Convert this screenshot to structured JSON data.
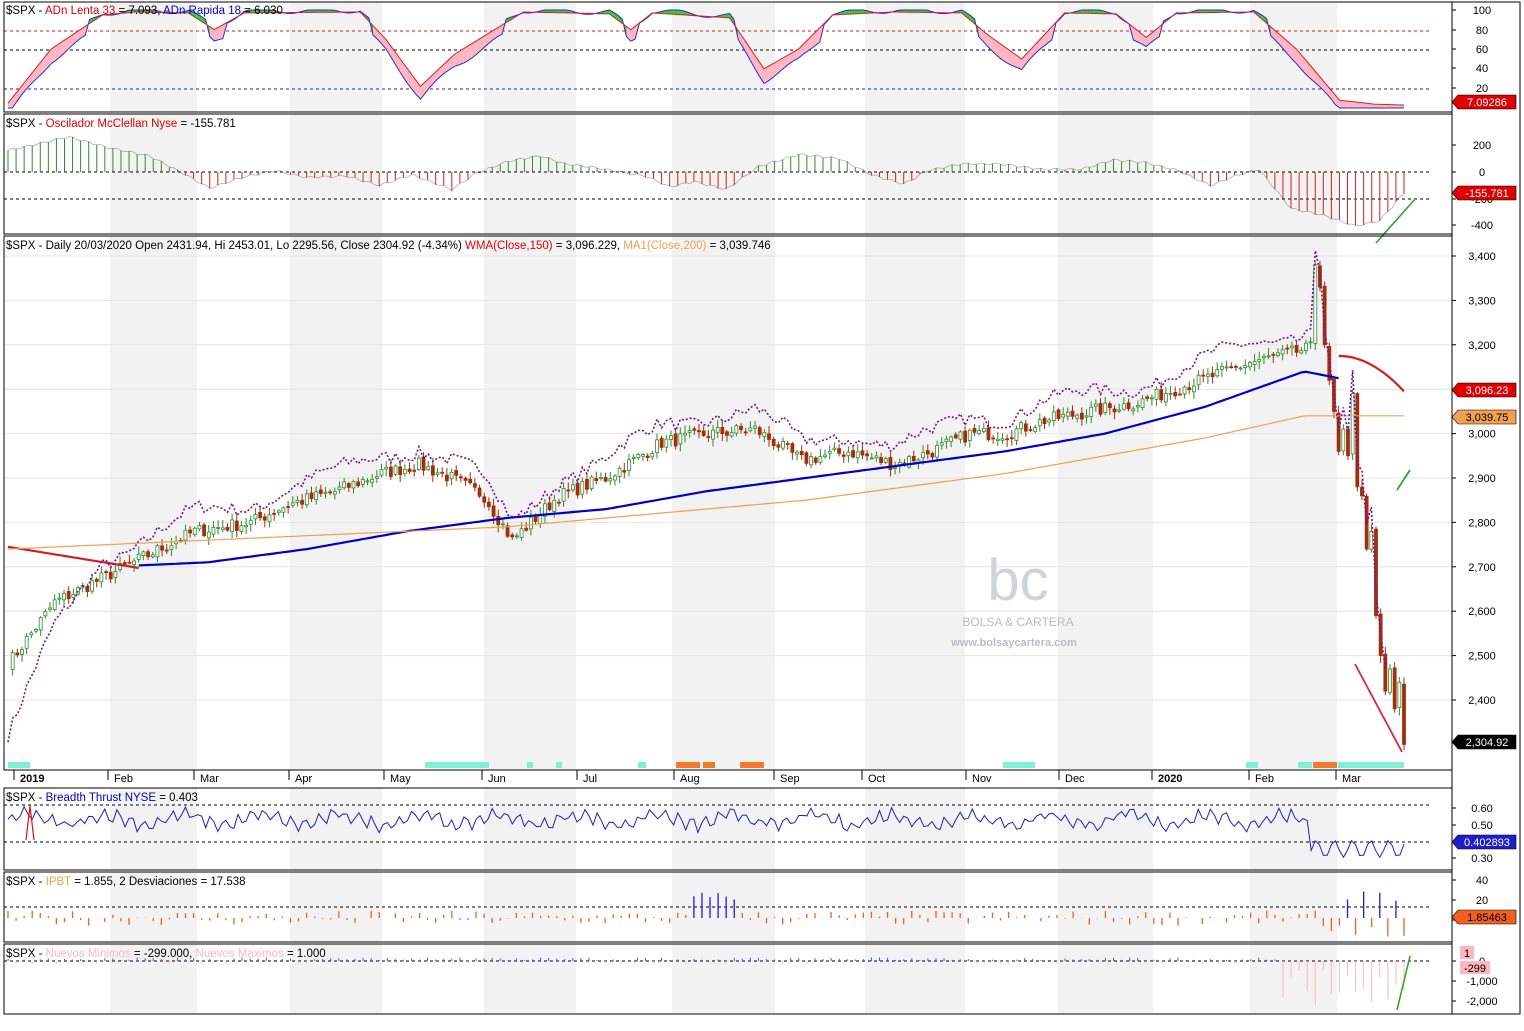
{
  "watermark": {
    "logo_text": "bc",
    "brand": "BOLSA & CARTERA",
    "url": "www.bolsaycartera.com"
  },
  "colors": {
    "up_candle": "#2e8b2e",
    "down_candle": "#a0300c",
    "wma": "#0000c8",
    "ma200": "#f0a050",
    "dotted": "#7a1090",
    "oscillator_up": "#2e8b2e",
    "oscillator_down": "#d21e1e",
    "adn_fill_green": "#33cc33",
    "adn_fill_pink": "#ffb6c1",
    "label_red": "#e00000",
    "label_orange": "#f0a050",
    "label_blue": "#0000c8",
    "label_black": "#000000",
    "trend_green": "#2aa82a",
    "trend_red": "#e0243a",
    "shade_band": "#ececec",
    "marker_teal": "#7ff0d4",
    "marker_orange": "#f07a2a"
  },
  "panels": [
    {
      "id": "adn",
      "title_parts": [
        {
          "text": "$SPX - ",
          "color": "black"
        },
        {
          "text": "ADn Lenta 33",
          "color": "red"
        },
        {
          "text": " = 7.093, ",
          "color": "black"
        },
        {
          "text": "ADn Rapida 18",
          "color": "blue"
        },
        {
          "text": " = 6.030",
          "color": "black"
        }
      ],
      "ticks": [
        "100",
        "80",
        "60",
        "40",
        "20"
      ],
      "last_label": "7.09286"
    },
    {
      "id": "mcclellan",
      "title_parts": [
        {
          "text": "$SPX - ",
          "color": "black"
        },
        {
          "text": "Oscilador McClellan Nyse",
          "color": "red"
        },
        {
          "text": " = -155.781",
          "color": "black"
        }
      ],
      "ticks": [
        "200",
        "0",
        "-200",
        "-400"
      ],
      "last_label": "-155.781"
    },
    {
      "id": "price",
      "title_parts": [
        {
          "text": "$SPX - Daily 20/03/2020 Open 2431.94, Hi 2453.01, Lo 2295.56, Close 2304.92 (-4.34%) ",
          "color": "black"
        },
        {
          "text": "WMA(Close,150)",
          "color": "red"
        },
        {
          "text": " = 3,096.229, ",
          "color": "black"
        },
        {
          "text": "MA1(Close,200)",
          "color": "orange"
        },
        {
          "text": " = 3,039.746",
          "color": "black"
        }
      ],
      "ticks": [
        "3,400",
        "3,300",
        "3,200",
        "3,100",
        "3,000",
        "2,900",
        "2,800",
        "2,700",
        "2,600",
        "2,500",
        "2,400"
      ],
      "labels": [
        {
          "text": "3,096.23",
          "kind": "red"
        },
        {
          "text": "3,039.75",
          "kind": "orange"
        },
        {
          "text": "2,304.92",
          "kind": "black"
        }
      ]
    },
    {
      "id": "breadth",
      "title_parts": [
        {
          "text": "$SPX - ",
          "color": "black"
        },
        {
          "text": "Breadth Thrust NYSE",
          "color": "blue"
        },
        {
          "text": " = 0.403",
          "color": "black"
        }
      ],
      "ticks": [
        "0.60",
        "0.50",
        "0.30"
      ],
      "last_label": "0.402893"
    },
    {
      "id": "ipbt",
      "title_parts": [
        {
          "text": "$SPX - ",
          "color": "black"
        },
        {
          "text": "IPBT",
          "color": "orange"
        },
        {
          "text": " = 1.855,     2 Desviaciones = 17.538",
          "color": "black"
        }
      ],
      "ticks": [
        "40",
        "20",
        "0"
      ],
      "last_label": "1.85463"
    },
    {
      "id": "nuevos",
      "title_parts": [
        {
          "text": "$SPX - ",
          "color": "black"
        },
        {
          "text": "Nuevos Minimos",
          "color": "pink"
        },
        {
          "text": " = -299.000, ",
          "color": "black"
        },
        {
          "text": "Nuevos Maximos",
          "color": "pink"
        },
        {
          "text": " = 1.000",
          "color": "black"
        }
      ],
      "ticks": [
        "0",
        "-1,000",
        "-2,000"
      ],
      "last_labels": [
        "1",
        "-299"
      ]
    }
  ],
  "x_axis": {
    "labels": [
      "2019",
      "Feb",
      "Mar",
      "Apr",
      "May",
      "Jun",
      "Jul",
      "Aug",
      "Sep",
      "Oct",
      "Nov",
      "Dec",
      "2020",
      "Feb",
      "Mar"
    ],
    "bold": [
      "2019",
      "2020"
    ]
  },
  "chart_data": {
    "type": "line",
    "title": "$SPX - Daily 20/03/2020 Open 2431.94, Hi 2453.01, Lo 2295.56, Close 2304.92 (-4.34%)",
    "xlabel": "",
    "ylabel": "",
    "ylim": [
      2280,
      3440
    ],
    "x": [
      "Jan 2019",
      "Feb 2019",
      "Mar 2019",
      "Apr 2019",
      "May 2019",
      "Jun 2019",
      "Jul 2019",
      "Aug 2019",
      "Sep 2019",
      "Oct 2019",
      "Nov 2019",
      "Dec 2019",
      "Jan 2020",
      "Feb 2020",
      "Mar 2020"
    ],
    "series": [
      {
        "name": "$SPX",
        "values": [
          2480,
          2700,
          2800,
          2860,
          2940,
          2750,
          2960,
          3020,
          2900,
          2990,
          3050,
          3150,
          3240,
          3290,
          2300
        ]
      },
      {
        "name": "WMA(Close,150)",
        "values": [
          2700,
          2700,
          2710,
          2740,
          2780,
          2810,
          2830,
          2870,
          2900,
          2930,
          2960,
          3000,
          3060,
          3140,
          3096
        ]
      },
      {
        "name": "MA1(Close,200)",
        "values": [
          2740,
          2750,
          2760,
          2770,
          2780,
          2790,
          2810,
          2830,
          2850,
          2880,
          2910,
          2950,
          2990,
          3040,
          3040
        ]
      }
    ],
    "annotations": [
      "3,096.23",
      "3,039.75",
      "2,304.92"
    ],
    "grid": true,
    "legend": "top-left"
  }
}
